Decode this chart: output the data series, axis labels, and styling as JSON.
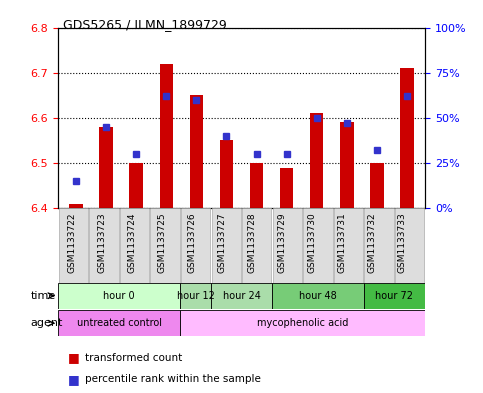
{
  "title": "GDS5265 / ILMN_1899729",
  "samples": [
    "GSM1133722",
    "GSM1133723",
    "GSM1133724",
    "GSM1133725",
    "GSM1133726",
    "GSM1133727",
    "GSM1133728",
    "GSM1133729",
    "GSM1133730",
    "GSM1133731",
    "GSM1133732",
    "GSM1133733"
  ],
  "bar_values": [
    6.41,
    6.58,
    6.5,
    6.72,
    6.65,
    6.55,
    6.5,
    6.49,
    6.61,
    6.59,
    6.5,
    6.71
  ],
  "bar_base": 6.4,
  "percentile_values": [
    15,
    45,
    30,
    62,
    60,
    40,
    30,
    30,
    50,
    47,
    32,
    62
  ],
  "ylim_left": [
    6.4,
    6.8
  ],
  "ylim_right": [
    0,
    100
  ],
  "yticks_left": [
    6.4,
    6.5,
    6.6,
    6.7,
    6.8
  ],
  "yticks_right": [
    0,
    25,
    50,
    75,
    100
  ],
  "ytick_labels_right": [
    "0%",
    "25%",
    "50%",
    "75%",
    "100%"
  ],
  "bar_color": "#cc0000",
  "dot_color": "#3333cc",
  "time_groups": [
    {
      "label": "hour 0",
      "start": 0,
      "end": 3,
      "color": "#ccffcc"
    },
    {
      "label": "hour 12",
      "start": 4,
      "end": 4,
      "color": "#aaddaa"
    },
    {
      "label": "hour 24",
      "start": 5,
      "end": 6,
      "color": "#aaddaa"
    },
    {
      "label": "hour 48",
      "start": 7,
      "end": 9,
      "color": "#77cc77"
    },
    {
      "label": "hour 72",
      "start": 10,
      "end": 11,
      "color": "#44bb44"
    }
  ],
  "agent_groups": [
    {
      "label": "untreated control",
      "start": 0,
      "end": 3,
      "color": "#ee88ee"
    },
    {
      "label": "mycophenolic acid",
      "start": 4,
      "end": 11,
      "color": "#ffbbff"
    }
  ],
  "legend_transformed": "transformed count",
  "legend_percentile": "percentile rank within the sample",
  "time_label": "time",
  "agent_label": "agent"
}
